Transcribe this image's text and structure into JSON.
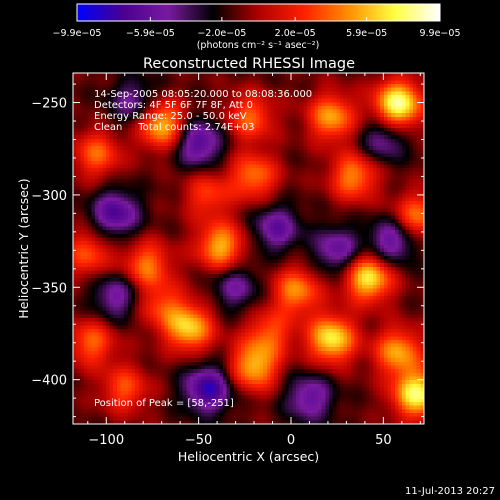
{
  "chart_data": {
    "type": "heatmap",
    "title": "Reconstructed RHESSI Image",
    "xlabel": "Heliocentric X (arcsec)",
    "ylabel": "Heliocentric Y (arcsec)",
    "xlim": [
      -118,
      72
    ],
    "ylim": [
      -424,
      -234
    ],
    "x_ticks": [
      -100,
      -50,
      0,
      50
    ],
    "y_ticks": [
      -250,
      -300,
      -350,
      -400
    ],
    "colorbar": {
      "range": [
        -9.9e-05,
        9.9e-05
      ],
      "tick_values": [
        -9.9e-05,
        -5.9e-05,
        -2e-05,
        2e-05,
        5.9e-05,
        9.9e-05
      ],
      "tick_labels": [
        "−9.9e−05",
        "−5.9e−05",
        "−2.0e−05",
        "2.0e−05",
        "5.9e−05",
        "9.9e−05"
      ],
      "unit_label": "(photons cm⁻² s⁻¹ asec⁻²)",
      "colormap": [
        "#0000ff",
        "#4a0090",
        "#7a1aa0",
        "#000000",
        "#b00000",
        "#ff2000",
        "#ff9000",
        "#ffff40",
        "#ffffff"
      ]
    },
    "annotations": {
      "time": "14-Sep-2005 08:05:20.000 to 08:08:36.000",
      "detectors": "Detectors: 4F 5F 6F 7F 8F, Att 0",
      "energy": "Energy Range: 25.0 - 50.0 keV",
      "clean": "Clean     Total counts: 2.74E+03",
      "peak": "Position of Peak = [58,-251]"
    },
    "bright_sources": [
      {
        "x": 58,
        "y": -251,
        "v": 9.9e-05
      },
      {
        "x": -70,
        "y": -262,
        "v": 7.5e-05
      },
      {
        "x": 22,
        "y": -258,
        "v": 6.5e-05
      },
      {
        "x": -22,
        "y": -258,
        "v": 5e-05
      },
      {
        "x": 34,
        "y": -290,
        "v": 6e-05
      },
      {
        "x": -105,
        "y": -278,
        "v": 5e-05
      },
      {
        "x": -20,
        "y": -290,
        "v": 5.5e-05
      },
      {
        "x": -45,
        "y": -300,
        "v": 4e-05
      },
      {
        "x": -38,
        "y": -328,
        "v": 7e-05
      },
      {
        "x": 68,
        "y": -312,
        "v": 5.5e-05
      },
      {
        "x": 42,
        "y": -345,
        "v": 8.5e-05
      },
      {
        "x": 3,
        "y": -352,
        "v": 6e-05
      },
      {
        "x": -78,
        "y": -338,
        "v": 5.5e-05
      },
      {
        "x": -110,
        "y": -332,
        "v": 4.5e-05
      },
      {
        "x": -70,
        "y": -360,
        "v": 4e-05
      },
      {
        "x": -12,
        "y": -375,
        "v": 4.5e-05
      },
      {
        "x": 22,
        "y": -378,
        "v": 8.5e-05
      },
      {
        "x": 58,
        "y": -385,
        "v": 6.5e-05
      },
      {
        "x": -55,
        "y": -372,
        "v": 7.5e-05
      },
      {
        "x": -20,
        "y": -393,
        "v": 7e-05
      },
      {
        "x": -108,
        "y": -380,
        "v": 5e-05
      },
      {
        "x": 68,
        "y": -408,
        "v": 9e-05
      },
      {
        "x": -90,
        "y": -405,
        "v": 4.5e-05
      }
    ],
    "dim_regions": [
      {
        "x": -50,
        "y": -272,
        "v": -6e-05
      },
      {
        "x": -8,
        "y": -318,
        "v": -5e-05
      },
      {
        "x": -95,
        "y": -310,
        "v": -6e-05
      },
      {
        "x": 55,
        "y": -325,
        "v": -5.5e-05
      },
      {
        "x": 50,
        "y": -270,
        "v": -4e-05
      },
      {
        "x": -85,
        "y": -250,
        "v": -4e-05
      },
      {
        "x": -45,
        "y": -405,
        "v": -7e-05
      },
      {
        "x": 10,
        "y": -410,
        "v": -5e-05
      },
      {
        "x": -30,
        "y": -350,
        "v": -4e-05
      },
      {
        "x": 25,
        "y": -330,
        "v": -5e-05
      },
      {
        "x": -95,
        "y": -355,
        "v": -4.5e-05
      }
    ]
  },
  "footer": {
    "date": "11-Jul-2013 20:27"
  }
}
